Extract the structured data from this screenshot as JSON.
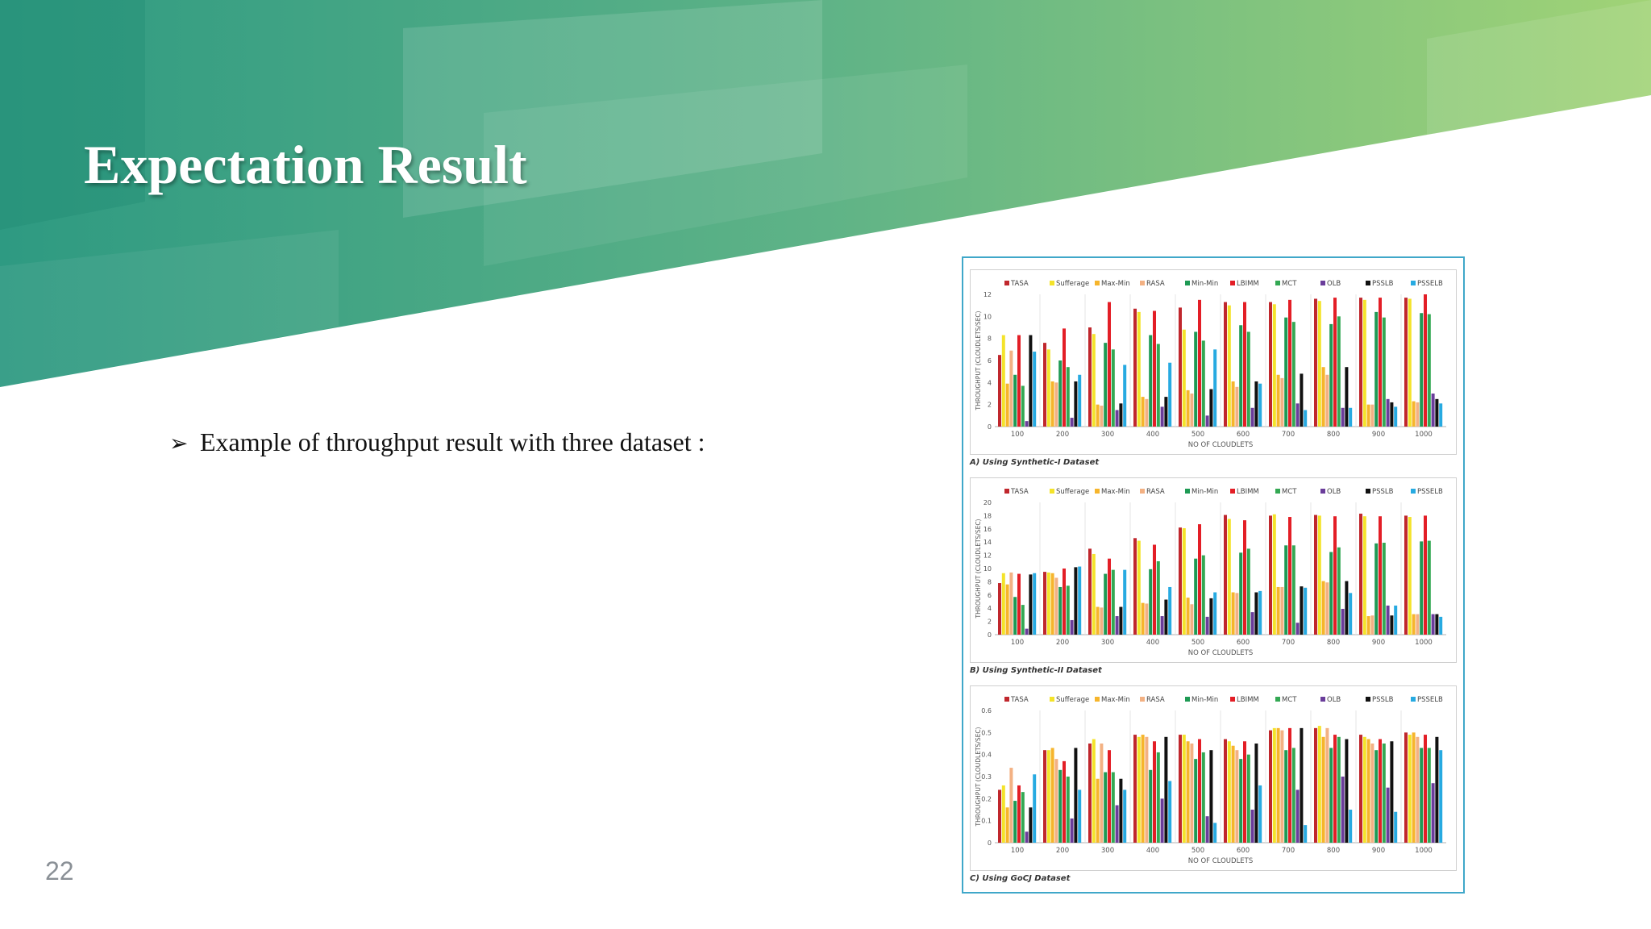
{
  "slide": {
    "title": "Expectation Result",
    "bullet": "Example of throughput result with three dataset :",
    "bullet_marker": "➢",
    "page_number": "22"
  },
  "colors": {
    "banner_dark": "#2e9a82",
    "banner_light": "#a1d376",
    "frame_border": "#3fa7c9"
  },
  "chart_data": [
    {
      "type": "bar",
      "caption": "A) Using Synthetic-I Dataset",
      "xlabel": "NO OF CLOUDLETS",
      "ylabel": "THROUGHPUT (CLOUDLETS/SEC)",
      "ylim": [
        0,
        12
      ],
      "yticks": [
        "0",
        "2",
        "4",
        "6",
        "8",
        "10",
        "12"
      ],
      "categories": [
        "100",
        "200",
        "300",
        "400",
        "500",
        "600",
        "700",
        "800",
        "900",
        "1000"
      ],
      "series": [
        {
          "name": "TASA",
          "color": "#c0272d",
          "values": [
            6.5,
            7.6,
            9.0,
            10.7,
            10.8,
            11.3,
            11.3,
            11.6,
            11.7,
            11.7
          ]
        },
        {
          "name": "Sufferage",
          "color": "#f4e32a",
          "values": [
            8.3,
            7.0,
            8.4,
            10.4,
            8.8,
            11.0,
            11.1,
            11.4,
            11.5,
            11.6
          ]
        },
        {
          "name": "Max-Min",
          "color": "#f6b52c",
          "values": [
            3.9,
            4.1,
            2.0,
            2.7,
            3.3,
            4.1,
            4.7,
            5.4,
            2.0,
            2.3
          ]
        },
        {
          "name": "RASA",
          "color": "#f3b183",
          "values": [
            6.9,
            4.0,
            1.9,
            2.5,
            3.0,
            3.6,
            4.4,
            4.7,
            2.0,
            2.2
          ]
        },
        {
          "name": "Min-Min",
          "color": "#1e9a54",
          "values": [
            4.7,
            6.0,
            7.6,
            8.3,
            8.6,
            9.2,
            9.9,
            9.3,
            10.4,
            10.3
          ]
        },
        {
          "name": "LBIMM",
          "color": "#e31e26",
          "values": [
            8.3,
            8.9,
            11.3,
            10.5,
            11.5,
            11.3,
            11.5,
            11.7,
            11.7,
            12.0
          ]
        },
        {
          "name": "MCT",
          "color": "#33a853",
          "values": [
            3.7,
            5.4,
            7.0,
            7.5,
            7.8,
            8.6,
            9.5,
            10.0,
            9.9,
            10.2
          ]
        },
        {
          "name": "OLB",
          "color": "#6a3d9a",
          "values": [
            0.5,
            0.8,
            1.5,
            1.8,
            1.0,
            1.7,
            2.1,
            1.7,
            2.5,
            3.0
          ]
        },
        {
          "name": "PSSLB",
          "color": "#111111",
          "values": [
            8.3,
            4.1,
            2.1,
            2.7,
            3.4,
            4.1,
            4.8,
            5.4,
            2.2,
            2.5
          ]
        },
        {
          "name": "PSSELB",
          "color": "#27aae1",
          "values": [
            6.8,
            4.7,
            5.6,
            5.8,
            7.0,
            3.9,
            1.5,
            1.7,
            1.8,
            2.1
          ]
        }
      ]
    },
    {
      "type": "bar",
      "caption": "B) Using Synthetic-II Dataset",
      "xlabel": "NO OF CLOUDLETS",
      "ylabel": "THROUGHPUT (CLOUDLETS/SEC)",
      "ylim": [
        0,
        20
      ],
      "yticks": [
        "0",
        "2",
        "4",
        "6",
        "8",
        "10",
        "12",
        "14",
        "16",
        "18",
        "20"
      ],
      "categories": [
        "100",
        "200",
        "300",
        "400",
        "500",
        "600",
        "700",
        "800",
        "900",
        "1000"
      ],
      "series": [
        {
          "name": "TASA",
          "color": "#c0272d",
          "values": [
            7.8,
            9.5,
            13.0,
            14.6,
            16.2,
            18.1,
            18.0,
            18.1,
            18.3,
            18.0
          ]
        },
        {
          "name": "Sufferage",
          "color": "#f4e32a",
          "values": [
            9.3,
            9.4,
            12.2,
            14.2,
            16.1,
            17.5,
            18.2,
            18.0,
            17.9,
            17.8
          ]
        },
        {
          "name": "Max-Min",
          "color": "#f6b52c",
          "values": [
            7.6,
            9.3,
            4.2,
            4.8,
            5.6,
            6.4,
            7.2,
            8.1,
            2.8,
            3.1
          ]
        },
        {
          "name": "RASA",
          "color": "#f3b183",
          "values": [
            9.4,
            8.6,
            4.1,
            4.7,
            4.6,
            6.3,
            7.2,
            7.9,
            2.9,
            3.1
          ]
        },
        {
          "name": "Min-Min",
          "color": "#1e9a54",
          "values": [
            5.7,
            7.2,
            9.2,
            9.9,
            11.5,
            12.4,
            13.5,
            12.5,
            13.8,
            14.1
          ]
        },
        {
          "name": "LBIMM",
          "color": "#e31e26",
          "values": [
            9.2,
            10.0,
            11.5,
            13.6,
            16.7,
            17.3,
            17.8,
            17.9,
            17.9,
            18.0
          ]
        },
        {
          "name": "MCT",
          "color": "#33a853",
          "values": [
            4.5,
            7.4,
            9.8,
            11.1,
            12.0,
            13.0,
            13.5,
            13.2,
            13.9,
            14.2
          ]
        },
        {
          "name": "OLB",
          "color": "#6a3d9a",
          "values": [
            0.9,
            2.2,
            2.8,
            2.8,
            2.7,
            3.4,
            1.8,
            3.9,
            4.4,
            3.1
          ]
        },
        {
          "name": "PSSLB",
          "color": "#111111",
          "values": [
            9.1,
            10.2,
            4.2,
            5.3,
            5.5,
            6.4,
            7.3,
            8.1,
            2.9,
            3.1
          ]
        },
        {
          "name": "PSSELB",
          "color": "#27aae1",
          "values": [
            9.3,
            10.3,
            9.8,
            7.2,
            6.4,
            6.6,
            7.1,
            6.3,
            4.4,
            2.7
          ]
        }
      ]
    },
    {
      "type": "bar",
      "caption": "C) Using GoCJ Dataset",
      "xlabel": "NO OF CLOUDLETS",
      "ylabel": "THROUGHPUT (CLOUDLETS/SEC)",
      "ylim": [
        0,
        0.6
      ],
      "yticks": [
        "0",
        "0.1",
        "0.2",
        "0.3",
        "0.4",
        "0.5",
        "0.6"
      ],
      "categories": [
        "100",
        "200",
        "300",
        "400",
        "500",
        "600",
        "700",
        "800",
        "900",
        "1000"
      ],
      "series": [
        {
          "name": "TASA",
          "color": "#c0272d",
          "values": [
            0.24,
            0.42,
            0.45,
            0.49,
            0.49,
            0.47,
            0.51,
            0.52,
            0.49,
            0.5
          ]
        },
        {
          "name": "Sufferage",
          "color": "#f4e32a",
          "values": [
            0.26,
            0.42,
            0.47,
            0.48,
            0.49,
            0.46,
            0.52,
            0.53,
            0.48,
            0.49
          ]
        },
        {
          "name": "Max-Min",
          "color": "#f6b52c",
          "values": [
            0.16,
            0.43,
            0.29,
            0.49,
            0.46,
            0.44,
            0.52,
            0.48,
            0.47,
            0.5
          ]
        },
        {
          "name": "RASA",
          "color": "#f3b183",
          "values": [
            0.34,
            0.38,
            0.45,
            0.48,
            0.45,
            0.42,
            0.51,
            0.52,
            0.45,
            0.48
          ]
        },
        {
          "name": "Min-Min",
          "color": "#1e9a54",
          "values": [
            0.19,
            0.33,
            0.32,
            0.33,
            0.38,
            0.38,
            0.42,
            0.43,
            0.42,
            0.43
          ]
        },
        {
          "name": "LBIMM",
          "color": "#e31e26",
          "values": [
            0.26,
            0.37,
            0.42,
            0.46,
            0.47,
            0.46,
            0.52,
            0.49,
            0.47,
            0.49
          ]
        },
        {
          "name": "MCT",
          "color": "#33a853",
          "values": [
            0.23,
            0.3,
            0.32,
            0.41,
            0.41,
            0.4,
            0.43,
            0.48,
            0.45,
            0.43
          ]
        },
        {
          "name": "OLB",
          "color": "#6a3d9a",
          "values": [
            0.05,
            0.11,
            0.17,
            0.2,
            0.12,
            0.15,
            0.24,
            0.3,
            0.25,
            0.27
          ]
        },
        {
          "name": "PSSLB",
          "color": "#111111",
          "values": [
            0.16,
            0.43,
            0.29,
            0.48,
            0.42,
            0.45,
            0.52,
            0.47,
            0.46,
            0.48
          ]
        },
        {
          "name": "PSSELB",
          "color": "#27aae1",
          "values": [
            0.31,
            0.24,
            0.24,
            0.28,
            0.09,
            0.26,
            0.08,
            0.15,
            0.14,
            0.42
          ]
        }
      ]
    }
  ]
}
